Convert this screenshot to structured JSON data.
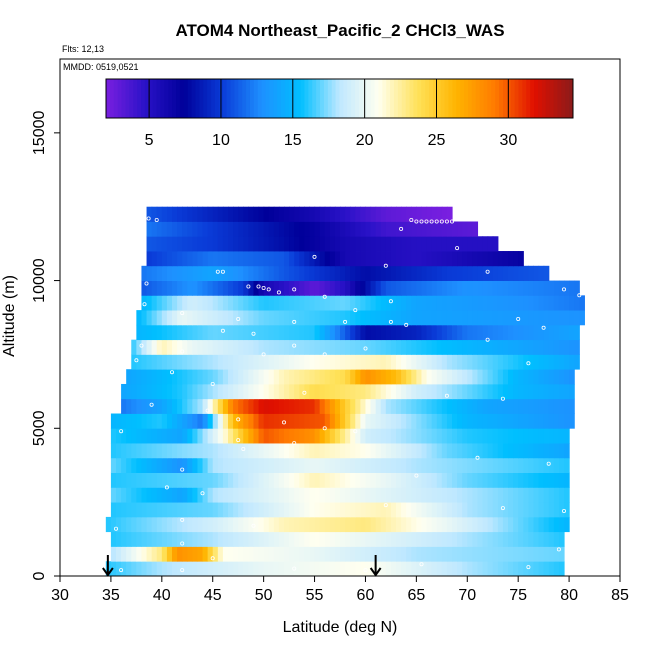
{
  "chart_data": {
    "type": "heatmap",
    "title": "ATOM4 Northeast_Pacific_2 CHCl3_WAS",
    "flights_text": "Flts: 12,13",
    "dates_text": "MMDD: 0519,0521",
    "xlabel": "Latitude (deg N)",
    "ylabel": "Altitude (m)",
    "xlim": [
      30,
      85
    ],
    "ylim": [
      0,
      17500
    ],
    "x_ticks": [
      30,
      35,
      40,
      45,
      50,
      55,
      60,
      65,
      70,
      75,
      80,
      85
    ],
    "y_ticks": [
      0,
      5000,
      10000,
      15000
    ],
    "colorbar": {
      "range": [
        2,
        34.5
      ],
      "ticks": [
        5,
        10,
        15,
        20,
        25,
        30
      ],
      "colors": [
        "#7a1fe0",
        "#2a12c8",
        "#00009a",
        "#0a3cd8",
        "#1e90ff",
        "#00bfff",
        "#bfe8ff",
        "#fffff0",
        "#ffe25a",
        "#ffb400",
        "#ff7a00",
        "#e01000",
        "#8b1a1a"
      ]
    },
    "arrows_at_latitude": [
      34.7,
      61
    ],
    "bands": [
      {
        "alt": [
          0,
          500
        ],
        "lat": [
          34.5,
          79.5
        ],
        "stops": [
          [
            34.5,
            16
          ],
          [
            40,
            18
          ],
          [
            50,
            20
          ],
          [
            60,
            21
          ],
          [
            70,
            18
          ],
          [
            79.5,
            16
          ]
        ]
      },
      {
        "alt": [
          500,
          1000
        ],
        "lat": [
          35,
          79.5
        ],
        "stops": [
          [
            35,
            18
          ],
          [
            40,
            23
          ],
          [
            41.5,
            28
          ],
          [
            44,
            27
          ],
          [
            46,
            21
          ],
          [
            55,
            20
          ],
          [
            65,
            18
          ],
          [
            79.5,
            17
          ]
        ]
      },
      {
        "alt": [
          1000,
          1500
        ],
        "lat": [
          35,
          79.5
        ],
        "stops": [
          [
            35,
            16
          ],
          [
            45,
            18
          ],
          [
            55,
            21
          ],
          [
            65,
            19
          ],
          [
            79.5,
            16
          ]
        ]
      },
      {
        "alt": [
          1500,
          2000
        ],
        "lat": [
          34.5,
          80
        ],
        "stops": [
          [
            34.5,
            16
          ],
          [
            45,
            19
          ],
          [
            52,
            22
          ],
          [
            60,
            23
          ],
          [
            68,
            20
          ],
          [
            75,
            17
          ],
          [
            80,
            15
          ]
        ]
      },
      {
        "alt": [
          2000,
          2500
        ],
        "lat": [
          35,
          80
        ],
        "stops": [
          [
            35,
            16
          ],
          [
            45,
            17
          ],
          [
            55,
            21
          ],
          [
            62,
            22
          ],
          [
            70,
            18
          ],
          [
            80,
            16
          ]
        ]
      },
      {
        "alt": [
          2500,
          3000
        ],
        "lat": [
          35,
          80
        ],
        "stops": [
          [
            35,
            17
          ],
          [
            42,
            14
          ],
          [
            45,
            18
          ],
          [
            55,
            21
          ],
          [
            65,
            19
          ],
          [
            80,
            16
          ]
        ]
      },
      {
        "alt": [
          3000,
          3500
        ],
        "lat": [
          35,
          80
        ],
        "stops": [
          [
            35,
            16
          ],
          [
            45,
            17
          ],
          [
            55,
            22
          ],
          [
            62,
            20
          ],
          [
            70,
            17
          ],
          [
            80,
            15
          ]
        ]
      },
      {
        "alt": [
          3500,
          4000
        ],
        "lat": [
          35,
          80
        ],
        "stops": [
          [
            35,
            17
          ],
          [
            42,
            13
          ],
          [
            45,
            18
          ],
          [
            55,
            20
          ],
          [
            65,
            18
          ],
          [
            80,
            16
          ]
        ]
      },
      {
        "alt": [
          4000,
          4500
        ],
        "lat": [
          35,
          80
        ],
        "stops": [
          [
            35,
            16
          ],
          [
            45,
            18
          ],
          [
            55,
            22
          ],
          [
            60,
            21
          ],
          [
            68,
            17
          ],
          [
            80,
            14
          ]
        ]
      },
      {
        "alt": [
          4500,
          5000
        ],
        "lat": [
          35,
          80
        ],
        "stops": [
          [
            35,
            16
          ],
          [
            42,
            14
          ],
          [
            46,
            21
          ],
          [
            50,
            30
          ],
          [
            55,
            28
          ],
          [
            60,
            19
          ],
          [
            70,
            16
          ],
          [
            80,
            15
          ]
        ]
      },
      {
        "alt": [
          5000,
          5500
        ],
        "lat": [
          35,
          80.5
        ],
        "stops": [
          [
            35,
            15
          ],
          [
            40,
            16
          ],
          [
            44,
            12
          ],
          [
            47,
            26
          ],
          [
            50,
            31
          ],
          [
            56,
            30
          ],
          [
            60,
            20
          ],
          [
            70,
            15
          ],
          [
            80.5,
            13
          ]
        ]
      },
      {
        "alt": [
          5500,
          6000
        ],
        "lat": [
          36,
          80.5
        ],
        "stops": [
          [
            36,
            12
          ],
          [
            40,
            14
          ],
          [
            44,
            18
          ],
          [
            47,
            29
          ],
          [
            50,
            32
          ],
          [
            55,
            31
          ],
          [
            58,
            25
          ],
          [
            62,
            18
          ],
          [
            72,
            14
          ],
          [
            80.5,
            13
          ]
        ]
      },
      {
        "alt": [
          6000,
          6500
        ],
        "lat": [
          36,
          80.5
        ],
        "stops": [
          [
            36,
            14
          ],
          [
            42,
            16
          ],
          [
            50,
            21
          ],
          [
            55,
            24
          ],
          [
            60,
            23
          ],
          [
            65,
            19
          ],
          [
            75,
            15
          ],
          [
            80.5,
            14
          ]
        ]
      },
      {
        "alt": [
          6500,
          7000
        ],
        "lat": [
          36.5,
          80.5
        ],
        "stops": [
          [
            36.5,
            14
          ],
          [
            45,
            17
          ],
          [
            52,
            22
          ],
          [
            58,
            24
          ],
          [
            60,
            28
          ],
          [
            63,
            26
          ],
          [
            66,
            21
          ],
          [
            75,
            15
          ],
          [
            80.5,
            13
          ]
        ]
      },
      {
        "alt": [
          7000,
          7500
        ],
        "lat": [
          37,
          81
        ],
        "stops": [
          [
            37,
            16
          ],
          [
            45,
            18
          ],
          [
            55,
            21
          ],
          [
            62,
            22
          ],
          [
            68,
            18
          ],
          [
            81,
            14
          ]
        ]
      },
      {
        "alt": [
          7500,
          8000
        ],
        "lat": [
          37,
          81
        ],
        "stops": [
          [
            37,
            16
          ],
          [
            40,
            22
          ],
          [
            43,
            20
          ],
          [
            50,
            18
          ],
          [
            60,
            17
          ],
          [
            70,
            15
          ],
          [
            81,
            13
          ]
        ]
      },
      {
        "alt": [
          8000,
          8500
        ],
        "lat": [
          37.5,
          81
        ],
        "stops": [
          [
            37.5,
            15
          ],
          [
            45,
            17
          ],
          [
            55,
            16
          ],
          [
            60,
            8
          ],
          [
            65,
            9
          ],
          [
            70,
            12
          ],
          [
            81,
            14
          ]
        ]
      },
      {
        "alt": [
          8500,
          9000
        ],
        "lat": [
          37.5,
          81.5
        ],
        "stops": [
          [
            37.5,
            15
          ],
          [
            42,
            20
          ],
          [
            50,
            17
          ],
          [
            58,
            16
          ],
          [
            65,
            14
          ],
          [
            81.5,
            13
          ]
        ]
      },
      {
        "alt": [
          9000,
          9500
        ],
        "lat": [
          38,
          81.5
        ],
        "stops": [
          [
            38,
            15
          ],
          [
            43,
            19
          ],
          [
            50,
            16
          ],
          [
            58,
            17
          ],
          [
            65,
            14
          ],
          [
            75,
            13
          ],
          [
            81.5,
            12
          ]
        ]
      },
      {
        "alt": [
          9500,
          10000
        ],
        "lat": [
          38,
          81
        ],
        "stops": [
          [
            38,
            11
          ],
          [
            43,
            13
          ],
          [
            48,
            10
          ],
          [
            50,
            6
          ],
          [
            55,
            3
          ],
          [
            58,
            5
          ],
          [
            62,
            11
          ],
          [
            70,
            13
          ],
          [
            81,
            12
          ]
        ]
      },
      {
        "alt": [
          10000,
          10500
        ],
        "lat": [
          38,
          78
        ],
        "stops": [
          [
            38,
            12
          ],
          [
            45,
            14
          ],
          [
            52,
            11
          ],
          [
            60,
            8
          ],
          [
            68,
            10
          ],
          [
            78,
            11
          ]
        ]
      },
      {
        "alt": [
          10500,
          11000
        ],
        "lat": [
          38.5,
          75.5
        ],
        "stops": [
          [
            38.5,
            10
          ],
          [
            45,
            12
          ],
          [
            52,
            11
          ],
          [
            58,
            6
          ],
          [
            65,
            5
          ],
          [
            75.5,
            7
          ]
        ]
      },
      {
        "alt": [
          11000,
          11500
        ],
        "lat": [
          38.5,
          73
        ],
        "stops": [
          [
            38.5,
            11
          ],
          [
            45,
            10
          ],
          [
            52,
            8
          ],
          [
            58,
            6
          ],
          [
            65,
            5
          ],
          [
            73,
            5
          ]
        ]
      },
      {
        "alt": [
          11500,
          12000
        ],
        "lat": [
          38.5,
          71
        ],
        "stops": [
          [
            38.5,
            12
          ],
          [
            45,
            10
          ],
          [
            55,
            7
          ],
          [
            62,
            4
          ],
          [
            71,
            3
          ]
        ]
      },
      {
        "alt": [
          12000,
          12500
        ],
        "lat": [
          38.5,
          68.5
        ],
        "stops": [
          [
            38.5,
            11
          ],
          [
            45,
            9
          ],
          [
            55,
            6
          ],
          [
            62,
            3
          ],
          [
            68.5,
            2
          ]
        ]
      }
    ],
    "sample_points": [
      [
        38.7,
        12100
      ],
      [
        39.5,
        12050
      ],
      [
        64.5,
        12050
      ],
      [
        65,
        12000
      ],
      [
        65.5,
        12000
      ],
      [
        66,
        12000
      ],
      [
        66.5,
        12000
      ],
      [
        67,
        12000
      ],
      [
        67.5,
        12000
      ],
      [
        68,
        12000
      ],
      [
        68.5,
        12000
      ],
      [
        63.5,
        11750
      ],
      [
        69,
        11100
      ],
      [
        55,
        10800
      ],
      [
        45.5,
        10300
      ],
      [
        46,
        10300
      ],
      [
        62,
        10500
      ],
      [
        72,
        10300
      ],
      [
        38.5,
        9900
      ],
      [
        48.5,
        9800
      ],
      [
        49.5,
        9800
      ],
      [
        50,
        9750
      ],
      [
        50.5,
        9700
      ],
      [
        51.5,
        9600
      ],
      [
        53,
        9700
      ],
      [
        56,
        9450
      ],
      [
        62.5,
        9300
      ],
      [
        79.5,
        9700
      ],
      [
        81,
        9500
      ],
      [
        38.3,
        9200
      ],
      [
        42,
        8900
      ],
      [
        47.5,
        8700
      ],
      [
        53,
        8600
      ],
      [
        58,
        8600
      ],
      [
        59,
        9000
      ],
      [
        62.5,
        8600
      ],
      [
        64,
        8500
      ],
      [
        75,
        8700
      ],
      [
        46,
        8300
      ],
      [
        49,
        8200
      ],
      [
        72,
        8000
      ],
      [
        77.5,
        8400
      ],
      [
        38,
        7800
      ],
      [
        50,
        7500
      ],
      [
        53,
        7800
      ],
      [
        56,
        7500
      ],
      [
        60,
        7700
      ],
      [
        42,
        7600
      ],
      [
        37.5,
        7300
      ],
      [
        76,
        7200
      ],
      [
        41,
        6900
      ],
      [
        45,
        6500
      ],
      [
        54,
        6200
      ],
      [
        68,
        6100
      ],
      [
        73.5,
        6000
      ],
      [
        39,
        5800
      ],
      [
        44.5,
        5600
      ],
      [
        47.5,
        5300
      ],
      [
        52,
        5200
      ],
      [
        56,
        5000
      ],
      [
        36,
        4900
      ],
      [
        59,
        4900
      ],
      [
        47.5,
        4600
      ],
      [
        53,
        4500
      ],
      [
        48,
        4300
      ],
      [
        71,
        4000
      ],
      [
        78,
        3800
      ],
      [
        42,
        3600
      ],
      [
        65,
        3400
      ],
      [
        40.5,
        3000
      ],
      [
        44,
        2800
      ],
      [
        62,
        2400
      ],
      [
        73.5,
        2300
      ],
      [
        79.5,
        2200
      ],
      [
        42,
        1900
      ],
      [
        49,
        1700
      ],
      [
        35.5,
        1600
      ],
      [
        42,
        1100
      ],
      [
        45,
        600
      ],
      [
        79,
        900
      ],
      [
        65.5,
        400
      ],
      [
        36,
        200
      ],
      [
        42,
        200
      ],
      [
        53,
        250
      ],
      [
        60,
        200
      ],
      [
        76,
        300
      ]
    ]
  }
}
